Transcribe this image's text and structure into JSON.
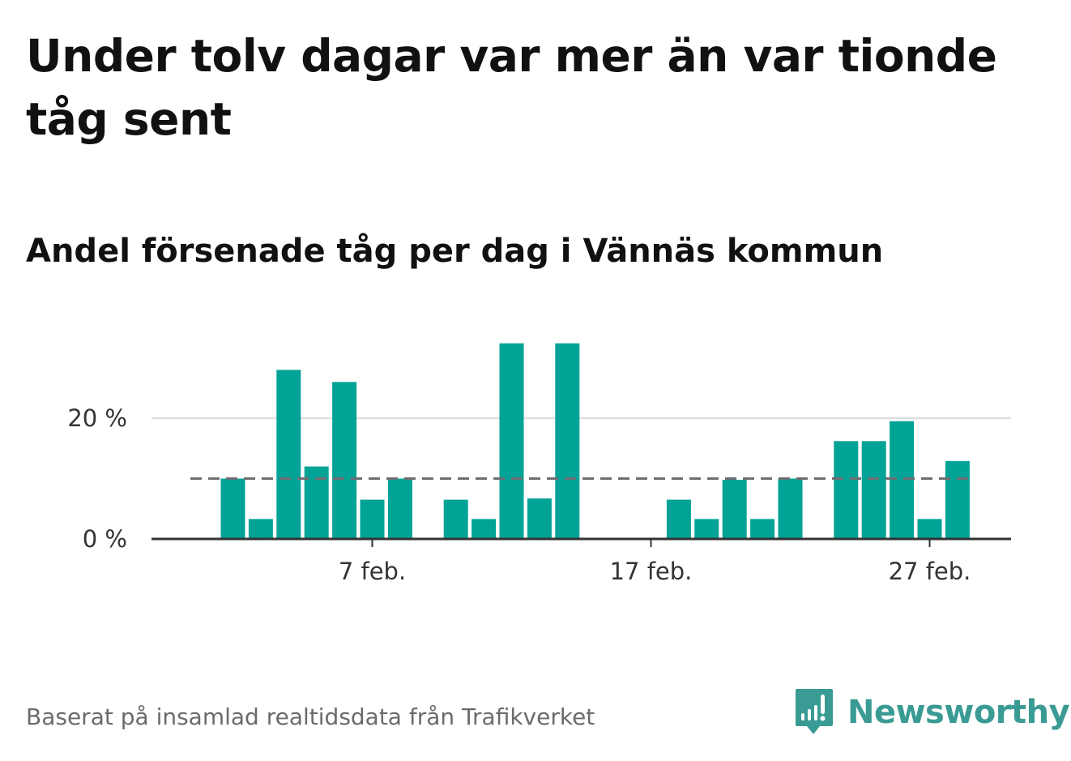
{
  "title": "Under tolv dagar var mer än var tionde tåg sent",
  "subtitle": "Andel försenade tåg per dag i Vännäs kommun",
  "footer": "Baserat på insamlad realtidsdata från Trafikverket",
  "brand": {
    "name": "Newsworthy",
    "icon": "newsworthy-logo-icon",
    "color": "#3a9b94"
  },
  "chart_data": {
    "type": "bar",
    "bar_color": "#00a396",
    "reference_line": {
      "value": 10,
      "style": "dashed",
      "color": "#6e6e73"
    },
    "x_start_day": 1,
    "x_month_label": "feb.",
    "x": [
      2,
      3,
      4,
      5,
      6,
      7,
      8,
      9,
      10,
      11,
      12,
      13,
      14,
      15,
      16,
      17,
      18,
      19,
      20,
      21,
      22,
      23,
      24,
      25,
      26,
      27,
      28
    ],
    "values": [
      10,
      3.3,
      28,
      12,
      26,
      6.5,
      10,
      null,
      6.5,
      3.3,
      32.4,
      6.7,
      32.4,
      null,
      null,
      null,
      6.5,
      3.3,
      9.8,
      3.3,
      10,
      null,
      16.2,
      16.2,
      19.5,
      3.3,
      12.9
    ],
    "xticks": [
      {
        "day": 7,
        "label": "7 feb."
      },
      {
        "day": 17,
        "label": "17 feb."
      },
      {
        "day": 27,
        "label": "27 feb."
      }
    ],
    "yticks": [
      {
        "value": 0,
        "label": "0 %"
      },
      {
        "value": 20,
        "label": "20 %"
      }
    ],
    "ylim": [
      0,
      33
    ],
    "grid": "horizontal"
  }
}
